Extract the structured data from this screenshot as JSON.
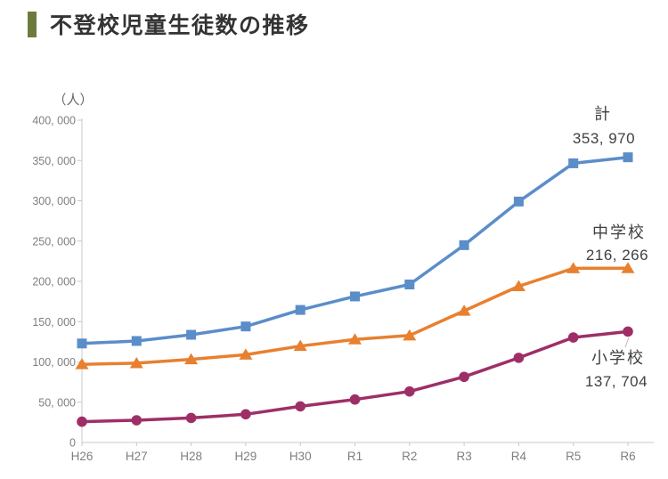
{
  "header": {
    "title": "不登校児童生徒数の推移"
  },
  "colors": {
    "accent_bar": "#6C7B3C",
    "axis_line": "#C9C9C9",
    "tick_text": "#7F7F7F",
    "title_text": "#333333",
    "annotation_text": "#404040",
    "series_total": "#5B8DC9",
    "series_junior_high": "#E8802F",
    "series_elementary": "#9E2F66"
  },
  "chart_data": {
    "type": "line",
    "title": "不登校児童生徒数の推移",
    "unit_label": "（人）",
    "xlabel": "",
    "ylabel": "人",
    "categories": [
      "H26",
      "H27",
      "H28",
      "H29",
      "H30",
      "R1",
      "R2",
      "R3",
      "R4",
      "R5",
      "R6"
    ],
    "ylim": [
      0,
      400000
    ],
    "y_tick_step": 50000,
    "y_tick_labels": [
      "0",
      "50, 000",
      "100, 000",
      "150, 000",
      "200, 000",
      "250, 000",
      "300, 000",
      "350, 000",
      "400, 000"
    ],
    "grid": false,
    "legend_position": "labels-at-line-end",
    "series": [
      {
        "name": "計",
        "marker": "square",
        "color": "#5B8DC9",
        "values": [
          122897,
          125991,
          133683,
          144031,
          164528,
          181272,
          196127,
          244940,
          299048,
          346482,
          353970
        ],
        "end_label": "353, 970"
      },
      {
        "name": "中学校",
        "marker": "triangle",
        "color": "#E8802F",
        "values": [
          97033,
          98408,
          103235,
          108999,
          119687,
          127922,
          132777,
          163442,
          193936,
          216112,
          216266
        ],
        "end_label": "216, 266"
      },
      {
        "name": "小学校",
        "marker": "circle",
        "color": "#9E2F66",
        "values": [
          25864,
          27583,
          30448,
          35032,
          44841,
          53350,
          63350,
          81498,
          105112,
          130370,
          137704
        ],
        "end_label": "137, 704"
      }
    ]
  }
}
